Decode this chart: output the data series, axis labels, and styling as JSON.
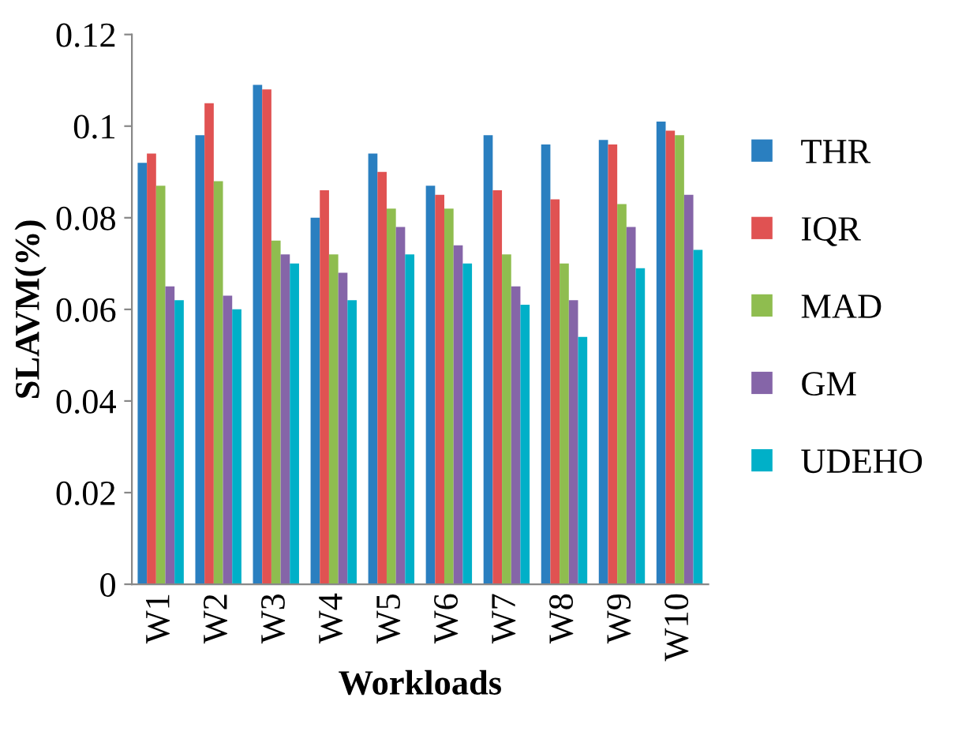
{
  "chart_data": {
    "type": "bar",
    "xlabel": "Workloads",
    "ylabel": "SLAVM(%)",
    "categories": [
      "W1",
      "W2",
      "W3",
      "W4",
      "W5",
      "W6",
      "W7",
      "W8",
      "W9",
      "W10"
    ],
    "series": [
      {
        "name": "THR",
        "color": "#2a7fc0",
        "values": [
          0.092,
          0.098,
          0.109,
          0.08,
          0.094,
          0.087,
          0.098,
          0.096,
          0.097,
          0.101
        ]
      },
      {
        "name": "IQR",
        "color": "#e05252",
        "values": [
          0.094,
          0.105,
          0.108,
          0.086,
          0.09,
          0.085,
          0.086,
          0.084,
          0.096,
          0.099
        ]
      },
      {
        "name": "MAD",
        "color": "#8fbd4f",
        "values": [
          0.087,
          0.088,
          0.075,
          0.072,
          0.082,
          0.082,
          0.072,
          0.07,
          0.083,
          0.098
        ]
      },
      {
        "name": "GM",
        "color": "#8565a8",
        "values": [
          0.065,
          0.063,
          0.072,
          0.068,
          0.078,
          0.074,
          0.065,
          0.062,
          0.078,
          0.085
        ]
      },
      {
        "name": "UDEHO",
        "color": "#00b0c8",
        "values": [
          0.062,
          0.06,
          0.07,
          0.062,
          0.072,
          0.07,
          0.061,
          0.054,
          0.069,
          0.073
        ]
      }
    ],
    "ylim": [
      0,
      0.12
    ],
    "yticks": [
      0,
      0.02,
      0.04,
      0.06,
      0.08,
      0.1,
      0.12
    ],
    "grid": false,
    "legend": "right"
  }
}
